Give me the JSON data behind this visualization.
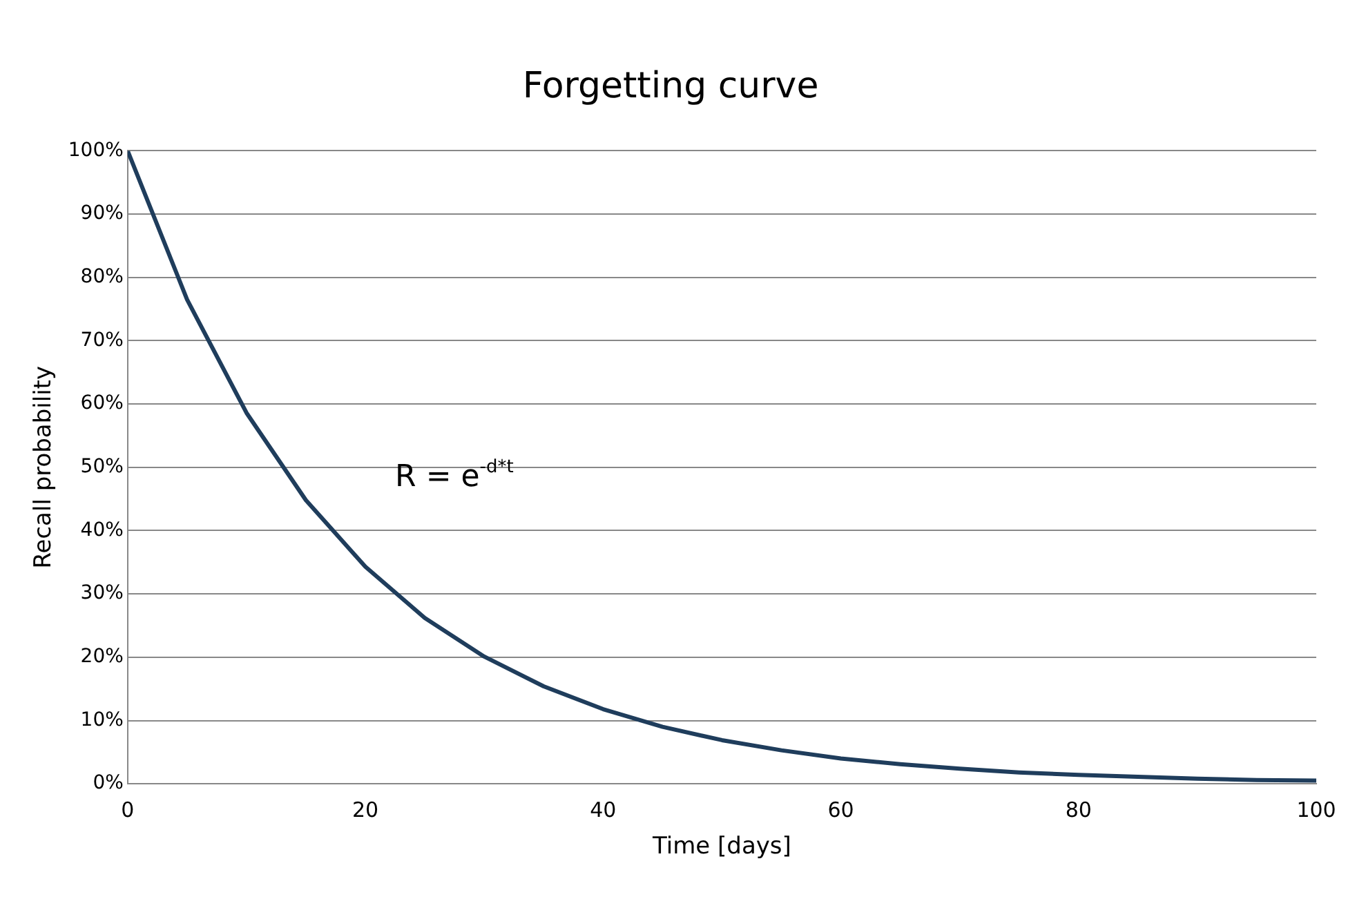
{
  "chart_data": {
    "type": "line",
    "title": "Forgetting curve",
    "xlabel": "Time [days]",
    "ylabel": "Recall probability",
    "x": [
      0,
      5,
      10,
      15,
      20,
      25,
      30,
      35,
      40,
      45,
      50,
      55,
      60,
      65,
      70,
      75,
      80,
      85,
      90,
      95,
      100
    ],
    "series": [
      {
        "color": "#1f3d5c",
        "values": [
          100,
          76.5,
          58.6,
          44.8,
          34.3,
          26.2,
          20.1,
          15.4,
          11.8,
          9,
          6.9,
          5.3,
          4,
          3.1,
          2.4,
          1.8,
          1.4,
          1.1,
          0.8,
          0.6,
          0.5
        ]
      }
    ],
    "xlim": [
      0,
      100
    ],
    "xticks": [
      0,
      20,
      40,
      60,
      80,
      100
    ],
    "ylim": [
      0,
      100
    ],
    "yticks": [
      {
        "value": 0,
        "label": "0%"
      },
      {
        "value": 10,
        "label": "10%"
      },
      {
        "value": 20,
        "label": "20%"
      },
      {
        "value": 30,
        "label": "30%"
      },
      {
        "value": 40,
        "label": "40%"
      },
      {
        "value": 50,
        "label": "50%"
      },
      {
        "value": 60,
        "label": "60%"
      },
      {
        "value": 70,
        "label": "70%"
      },
      {
        "value": 80,
        "label": "80%"
      },
      {
        "value": 90,
        "label": "90%"
      },
      {
        "value": 100,
        "label": "100%"
      }
    ],
    "grid": "y",
    "marker": "none",
    "line_style": "solid",
    "annotations": [
      "R = e$^{-d*t}$"
    ]
  }
}
